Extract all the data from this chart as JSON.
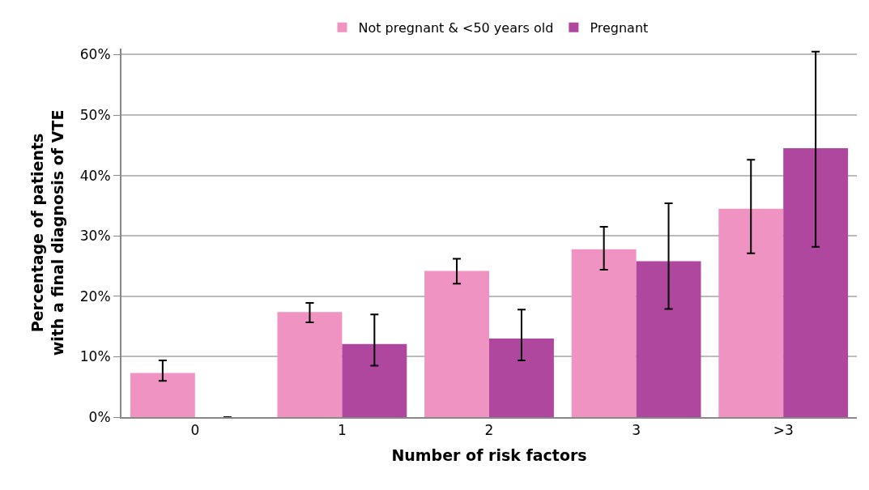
{
  "chart_data": {
    "type": "bar",
    "xlabel": "Number of risk factors",
    "ylabel": "Percentage of patients\nwith a final diagnosis of VTE",
    "categories": [
      "0",
      "1",
      "2",
      "3",
      ">3"
    ],
    "series": [
      {
        "name": "Not pregnant & <50 years old",
        "color": "#ee93c2",
        "values": [
          7.3,
          17.4,
          24.2,
          27.8,
          34.5
        ],
        "errors": [
          [
            6.0,
            9.4
          ],
          [
            15.7,
            18.9
          ],
          [
            22.1,
            26.2
          ],
          [
            24.4,
            31.5
          ],
          [
            27.1,
            42.6
          ]
        ]
      },
      {
        "name": "Pregnant",
        "color": "#b0479f",
        "values": [
          0,
          12.1,
          13.0,
          25.8,
          44.5
        ],
        "errors": [
          null,
          [
            8.5,
            17.0
          ],
          [
            9.4,
            17.8
          ],
          [
            17.9,
            35.4
          ],
          [
            28.2,
            60.5
          ]
        ]
      }
    ],
    "ylim": [
      0,
      61
    ],
    "yticks": [
      {
        "value": 0,
        "label": "0%"
      },
      {
        "value": 10,
        "label": "10%"
      },
      {
        "value": 20,
        "label": "20%"
      },
      {
        "value": 30,
        "label": "30%"
      },
      {
        "value": 40,
        "label": "40%"
      },
      {
        "value": 50,
        "label": "50%"
      },
      {
        "value": 60,
        "label": "60%"
      }
    ],
    "grid": "y",
    "legend": "top"
  }
}
